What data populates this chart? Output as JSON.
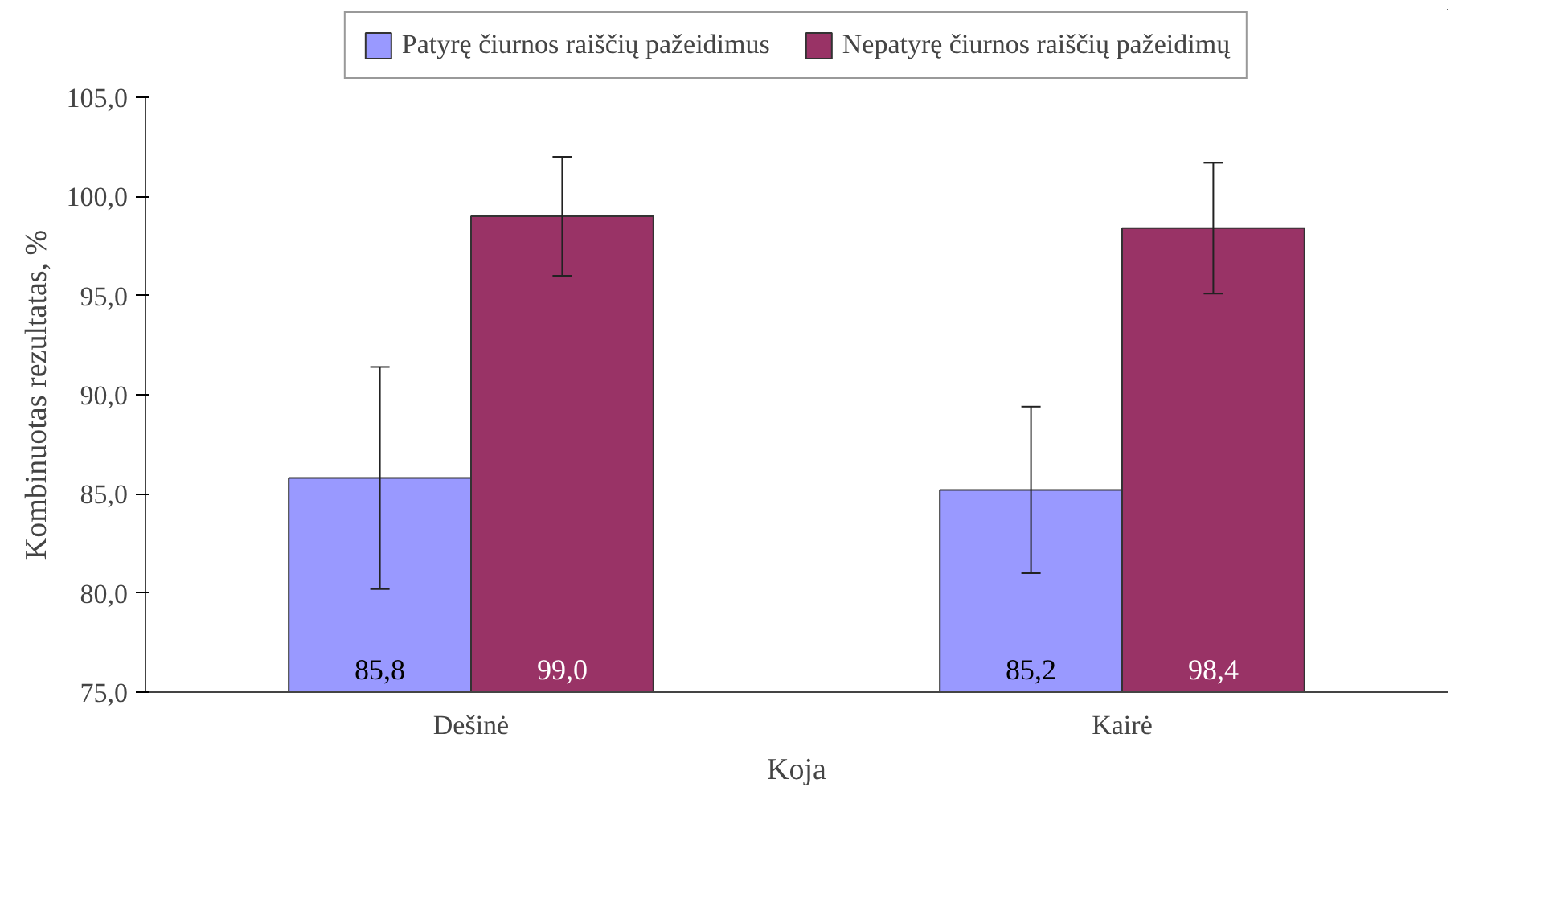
{
  "chart_data": {
    "type": "bar",
    "xlabel": "Koja",
    "ylabel": "Kombinuotas rezultatas, %",
    "categories": [
      "Dešinė",
      "Kairė"
    ],
    "series": [
      {
        "name": "Patyrę čiurnos raiščių pažeidimus",
        "color": "#9999ff",
        "values": [
          85.8,
          85.2
        ],
        "errors": [
          5.6,
          4.2
        ],
        "value_labels": [
          "85,8",
          "85,2"
        ]
      },
      {
        "name": "Nepatyrę čiurnos raiščių pažeidimų",
        "color": "#993366",
        "values": [
          99.0,
          98.4
        ],
        "errors": [
          3.0,
          3.3
        ],
        "value_labels": [
          "99,0",
          "98,4"
        ]
      }
    ],
    "ylim": [
      75,
      105
    ],
    "yticks": [
      {
        "value": 75,
        "label": "75,0"
      },
      {
        "value": 80,
        "label": "80,0"
      },
      {
        "value": 85,
        "label": "85,0"
      },
      {
        "value": 90,
        "label": "90,0"
      },
      {
        "value": 95,
        "label": "95,0"
      },
      {
        "value": 100,
        "label": "100,0"
      },
      {
        "value": 105,
        "label": "105,0"
      }
    ],
    "legend": "top",
    "grid": false
  }
}
